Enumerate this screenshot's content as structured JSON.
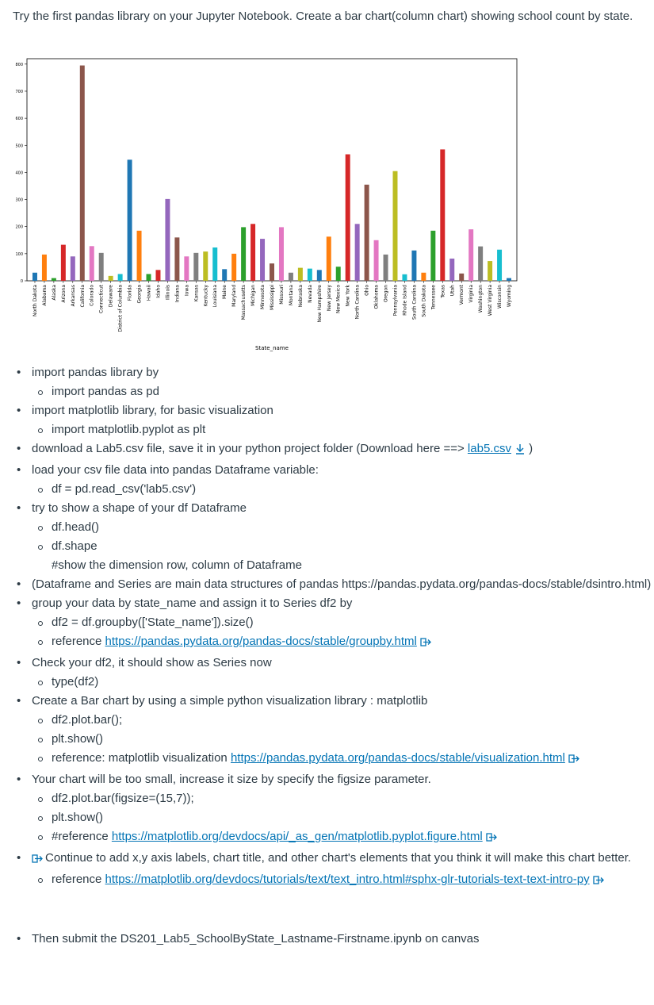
{
  "intro": "Try the first pandas library on your Jupyter Notebook. Create a bar chart(column chart) showing school count by state.",
  "chart_data": {
    "type": "bar",
    "xlabel": "State_name",
    "ylabel": "",
    "ylim": [
      0,
      820
    ],
    "yticks": [
      0,
      100,
      200,
      300,
      400,
      500,
      600,
      700,
      800
    ],
    "grid": false,
    "categories": [
      "North Dakota",
      "Alabama",
      "Alaska",
      "Arizona",
      "Arkansas",
      "California",
      "Colorado",
      "Connecticut",
      "Delaware",
      "District of Columbia",
      "Florida",
      "Georgia",
      "Hawaii",
      "Idaho",
      "Illinois",
      "Indiana",
      "Iowa",
      "Kansas",
      "Kentucky",
      "Louisiana",
      "Maine",
      "Maryland",
      "Massachusetts",
      "Michigan",
      "Minnesota",
      "Mississippi",
      "Missouri",
      "Montana",
      "Nebraska",
      "Nevada",
      "New Hampshire",
      "New Jersey",
      "New Mexico",
      "New York",
      "North Carolina",
      "Ohio",
      "Oklahoma",
      "Oregon",
      "Pennsylvania",
      "Rhode Island",
      "South Carolina",
      "South Dakota",
      "Tennessee",
      "Texas",
      "Utah",
      "Vermont",
      "Virginia",
      "Washington",
      "West Virginia",
      "Wisconsin",
      "Wyoming"
    ],
    "values": [
      30,
      97,
      10,
      133,
      90,
      795,
      128,
      103,
      18,
      25,
      447,
      185,
      25,
      40,
      302,
      160,
      90,
      103,
      108,
      123,
      43,
      100,
      198,
      210,
      155,
      64,
      198,
      30,
      48,
      45,
      40,
      163,
      52,
      467,
      210,
      355,
      150,
      97,
      405,
      24,
      112,
      30,
      185,
      485,
      82,
      27,
      190,
      127,
      73,
      115,
      10
    ],
    "colors": [
      "#1f77b4",
      "#ff7f0e",
      "#2ca02c",
      "#d62728",
      "#9467bd",
      "#8c564b",
      "#e377c2",
      "#7f7f7f",
      "#bcbd22",
      "#17becf"
    ]
  },
  "items": [
    {
      "text": "import pandas library by",
      "sub": [
        "import pandas as pd"
      ]
    },
    {
      "text": "import matplotlib library, for basic visualization",
      "sub": [
        "import matplotlib.pyplot as plt"
      ]
    },
    {
      "text": "download a Lab5.csv file, save it in your python project folder  (Download here ==> ",
      "link": "lab5.csv",
      "tail": " )"
    },
    {
      "text": "load your csv file data into pandas Dataframe variable:",
      "sub": [
        "df = pd.read_csv('lab5.csv')"
      ]
    },
    {
      "text": "try to show a shape of your df Dataframe",
      "sub": [
        "df.head()",
        "df.shape"
      ],
      "plain": "#show the dimension row, column of Dataframe"
    },
    {
      "text": "(Dataframe and Series are main data structures of pandas https://pandas.pydata.org/pandas-docs/stable/dsintro.html)"
    },
    {
      "text": "group your data by state_name and assign it to Series df2 by",
      "sub": [
        "df2 = df.groupby(['State_name']).size()"
      ],
      "ref_label": "reference ",
      "ref_link": "https://pandas.pydata.org/pandas-docs/stable/groupby.html"
    },
    {
      "text": "Check your df2, it should show as Series now",
      "sub": [
        "type(df2)"
      ]
    },
    {
      "text": "Create a Bar chart by using a simple python visualization library : matplotlib",
      "sub": [
        "df2.plot.bar();",
        "plt.show()"
      ],
      "ref_label": "reference: matplotlib visualization ",
      "ref_link": "https://pandas.pydata.org/pandas-docs/stable/visualization.html"
    },
    {
      "text": "Your chart will be too small, increase it size by specify the figsize parameter.",
      "sub": [
        "df2.plot.bar(figsize=(15,7));",
        "plt.show()"
      ],
      "ref_label": "#reference ",
      "ref_link": "https://matplotlib.org/devdocs/api/_as_gen/matplotlib.pyplot.figure.html"
    },
    {
      "text": "Continue to add x,y axis labels, chart title, and other chart's elements that you think it will make this chart better.",
      "ref_label": "reference ",
      "ref_link": "https://matplotlib.org/devdocs/tutorials/text/text_intro.html#sphx-glr-tutorials-text-text-intro-py"
    },
    {
      "text": "Then submit the DS201_Lab5_SchoolByState_Lastname-Firstname.ipynb on canvas"
    }
  ]
}
